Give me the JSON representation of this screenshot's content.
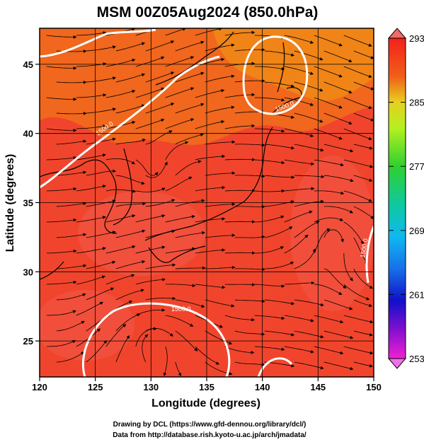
{
  "title": "MSM 00Z05Aug2024 (850.0hPa)",
  "xlabel": "Longitude (degrees)",
  "ylabel": "Latitude  (degrees)",
  "credits": [
    "Drawing by DCL (https://www.gfd-dennou.org/library/dcl/)",
    "Data from http://database.rish.kyoto-u.ac.jp/arch/jmadata/"
  ],
  "map": {
    "lon_range": [
      120,
      150
    ],
    "lat_range": [
      22.4,
      47.6
    ],
    "x_ticks": [
      "120",
      "125",
      "130",
      "135",
      "140",
      "145",
      "150"
    ],
    "y_ticks": [
      "25",
      "30",
      "35",
      "40",
      "45"
    ],
    "contour_label": "1500.0",
    "colorbar_ticks": [
      "293",
      "285",
      "277",
      "269",
      "261",
      "253"
    ],
    "colorbar_range": [
      253,
      293
    ],
    "field_color": "#f0402a"
  }
}
